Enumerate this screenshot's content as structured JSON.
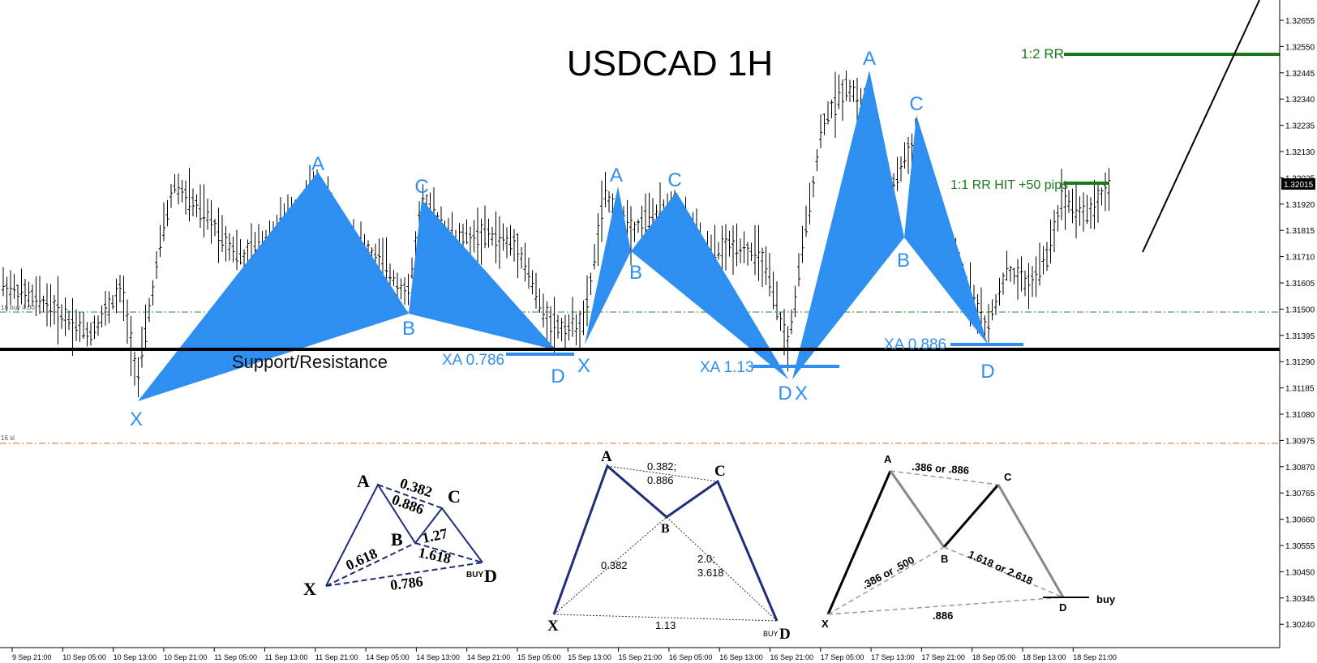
{
  "chart_data": {
    "type": "candlestick",
    "title": "USDCAD 1H",
    "y_axis": {
      "ticks": [
        "1.32655",
        "1.32550",
        "1.32445",
        "1.32340",
        "1.32235",
        "1.32130",
        "1.32025",
        "1.31920",
        "1.31815",
        "1.31710",
        "1.31605",
        "1.31500",
        "1.31395",
        "1.31290",
        "1.31185",
        "1.31080",
        "1.30975",
        "1.30870",
        "1.30765",
        "1.30660",
        "1.30555",
        "1.30450",
        "1.30345",
        "1.30240"
      ],
      "current_price": "1.32015"
    },
    "x_axis": {
      "ticks": [
        "9 Sep 21:00",
        "10 Sep 05:00",
        "10 Sep 13:00",
        "10 Sep 21:00",
        "11 Sep 05:00",
        "11 Sep 13:00",
        "11 Sep 21:00",
        "14 Sep 05:00",
        "14 Sep 13:00",
        "14 Sep 21:00",
        "15 Sep 05:00",
        "15 Sep 13:00",
        "15 Sep 21:00",
        "16 Sep 05:00",
        "16 Sep 13:00",
        "16 Sep 21:00",
        "17 Sep 05:00",
        "17 Sep 13:00",
        "17 Sep 21:00",
        "18 Sep 05:00",
        "18 Sep 13:00",
        "18 Sep 21:00"
      ]
    },
    "support_resistance": {
      "label": "Support/Resistance",
      "price": 1.31375
    },
    "buy_line": {
      "label": "16 buy 4.00",
      "price": 1.31525
    },
    "sl_line": {
      "label": "16 sl",
      "price": 1.31015
    },
    "targets": [
      {
        "label": "1:2 RR",
        "price": 1.32505,
        "color": "#1a7a1a"
      },
      {
        "label": "1:1 RR HIT +50 pips",
        "price": 1.32025,
        "color": "#1a7a1a"
      }
    ],
    "patterns": [
      {
        "name": "bat",
        "ratio_label": "XA 0.786",
        "points": {
          "X": 1.31175,
          "A": 1.32055,
          "B": 1.31525,
          "C": 1.31955,
          "D": 1.31365
        }
      },
      {
        "name": "gartley",
        "ratio_label": "XA 1.13",
        "points": {
          "X": 1.31395,
          "A": 1.3201,
          "B": 1.31775,
          "C": 1.31985,
          "D": 1.31255
        }
      },
      {
        "name": "bat",
        "ratio_label": "XA 0.886",
        "points": {
          "X": 1.31255,
          "A": 1.32455,
          "B": 1.31815,
          "C": 1.3229,
          "D": 1.31395
        }
      }
    ],
    "point_labels": [
      "A",
      "C",
      "B",
      "X",
      "D",
      "A",
      "C",
      "B",
      "D",
      "X",
      "A",
      "C",
      "B",
      "D"
    ],
    "rr_hit_label": "1:1 RR HIT +50 pips",
    "colors": {
      "pattern": "#2f8ff0",
      "pattern_label": "#2f8ff0",
      "target": "#1a7a1a",
      "candle": "#000000"
    }
  },
  "diagrams": {
    "d1": {
      "A": "A",
      "B": "B",
      "C": "C",
      "X": "X",
      "D": "D",
      "r1": "0.382",
      "r2": "0.886",
      "r3": "0.618",
      "r4": "1.27",
      "r5": "1.618",
      "r6": "0.786",
      "buy": "BUY"
    },
    "d2": {
      "A": "A",
      "B": "B",
      "C": "C",
      "X": "X",
      "D": "D",
      "r1a": "0.382;",
      "r1b": "0.886",
      "r2": "0.382",
      "r3a": "2.0;",
      "r3b": "3.618",
      "r4": "1.13",
      "buy": "BUY"
    },
    "d3": {
      "A": "A",
      "B": "B",
      "C": "C",
      "X": "X",
      "D": "D",
      "r1": ".386 or .886",
      "r2": ".386 or .500",
      "r3": "1.618 or 2.618",
      "r4": ".886",
      "buy": "buy"
    }
  }
}
